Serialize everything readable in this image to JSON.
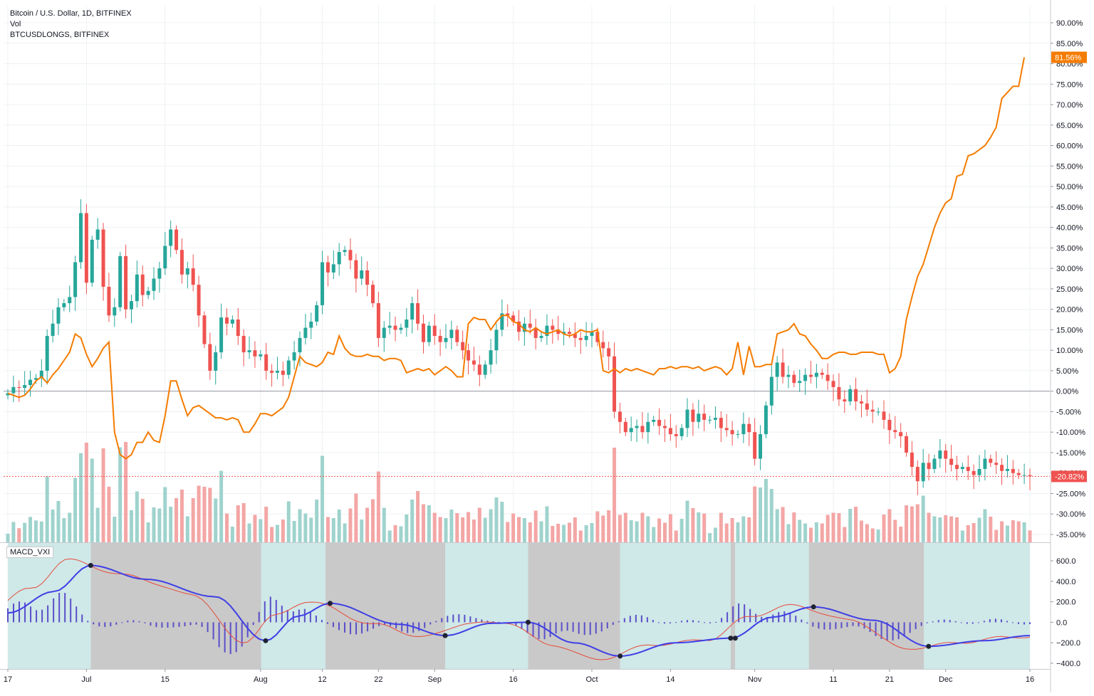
{
  "chart_data": [
    {
      "type": "candlestick",
      "legend": [
        "Bitcoin / U.S. Dollar, 1D, BITFINEX",
        "Vol",
        "BTCUSDLONGS, BITFINEX"
      ],
      "unit": "%",
      "x_tick_labels": [
        "17",
        "Jul",
        "15",
        "Aug",
        "12",
        "22",
        "Sep",
        "16",
        "Oct",
        "14",
        "Nov",
        "11",
        "21",
        "Dec",
        "16"
      ],
      "y_tick_labels": [
        "90.00%",
        "85.00%",
        "80.00%",
        "75.00%",
        "70.00%",
        "65.00%",
        "60.00%",
        "55.00%",
        "50.00%",
        "45.00%",
        "40.00%",
        "35.00%",
        "30.00%",
        "25.00%",
        "20.00%",
        "15.00%",
        "10.00%",
        "5.00%",
        "0.00%",
        "-5.00%",
        "-10.00%",
        "-15.00%",
        "-20.00%",
        "-25.00%",
        "-30.00%",
        "-35.00%"
      ],
      "ylim": [
        -37.5,
        93
      ],
      "baseline": 0,
      "colors": {
        "up": "#26a69a",
        "down": "#ef5350",
        "longs_line": "#f57c00",
        "vol_up": "#9fd3cd",
        "vol_down": "#f3a6a5"
      },
      "last_value_labels": [
        {
          "series": "BTCUSDLONGS, BITFINEX",
          "text": "81.56%",
          "value": 81.56,
          "color": "#f57c00"
        },
        {
          "series": "Bitcoin / U.S. Dollar, 1D, BITFINEX",
          "text": "-20.82%",
          "value": -20.82,
          "color": "#ef5350"
        }
      ],
      "btc_close_pct": [
        -0.5,
        1.0,
        0.8,
        1.5,
        2.8,
        3.2,
        5.0,
        13.5,
        16.5,
        20.5,
        21.5,
        23.0,
        31.5,
        43.5,
        26.5,
        37.0,
        39.5,
        25.5,
        18.5,
        20.5,
        33.0,
        20.0,
        22.0,
        28.5,
        23.5,
        24.5,
        27.5,
        30.0,
        35.5,
        39.5,
        34.5,
        28.5,
        30.0,
        26.0,
        18.5,
        11.5,
        5.0,
        9.5,
        18.0,
        16.5,
        17.5,
        13.5,
        9.5,
        10.0,
        8.5,
        9.0,
        5.0,
        4.5,
        5.0,
        4.0,
        7.5,
        9.5,
        13.0,
        15.5,
        17.0,
        21.0,
        31.5,
        29.0,
        31.0,
        34.0,
        34.5,
        32.0,
        27.5,
        29.5,
        26.0,
        21.5,
        13.0,
        15.5,
        16.0,
        15.0,
        15.5,
        17.5,
        21.5,
        16.5,
        12.0,
        16.0,
        13.5,
        12.0,
        13.0,
        15.0,
        12.0,
        10.0,
        7.5,
        6.5,
        4.0,
        6.5,
        10.0,
        15.0,
        19.0,
        18.5,
        17.0,
        14.5,
        16.5,
        15.5,
        13.0,
        13.5,
        16.0,
        15.0,
        14.0,
        14.5,
        14.0,
        13.0,
        12.5,
        13.5,
        14.5,
        12.0,
        10.5,
        8.5,
        -5.0,
        -7.5,
        -10.0,
        -9.0,
        -8.5,
        -10.0,
        -7.5,
        -7.0,
        -8.5,
        -9.0,
        -10.5,
        -11.0,
        -9.0,
        -4.5,
        -7.5,
        -5.5,
        -7.0,
        -7.0,
        -6.5,
        -9.0,
        -9.5,
        -10.5,
        -10.5,
        -8.0,
        -10.0,
        -16.5,
        -10.5,
        -3.5,
        3.5,
        7.0,
        3.5,
        4.0,
        2.0,
        2.5,
        4.0,
        3.5,
        4.5,
        4.0,
        2.5,
        1.0,
        -2.0,
        -2.5,
        0.5,
        -2.5,
        -3.0,
        -4.5,
        -5.0,
        -5.0,
        -7.0,
        -9.5,
        -10.0,
        -11.0,
        -15.0,
        -18.5,
        -22.0,
        -17.5,
        -19.0,
        -16.5,
        -14.5,
        -16.5,
        -18.0,
        -19.0,
        -18.5,
        -19.5,
        -20.5,
        -19.0,
        -16.5,
        -17.5,
        -18.0,
        -19.5,
        -19.0,
        -20.0,
        -20.5,
        -20.5,
        -20.8
      ],
      "btcusdlongs_pct": [
        -0.5,
        -1.0,
        -1.5,
        -1.0,
        0.5,
        2.5,
        3.5,
        2.0,
        4.0,
        5.5,
        7.5,
        9.5,
        14.0,
        13.0,
        9.0,
        6.0,
        8.0,
        10.5,
        12.0,
        -10.0,
        -15.5,
        -16.5,
        -15.5,
        -12.5,
        -12.5,
        -10.0,
        -12.0,
        -12.5,
        -6.0,
        2.5,
        2.5,
        -2.0,
        -6.0,
        -4.0,
        -3.5,
        -4.5,
        -5.5,
        -6.5,
        -6.5,
        -7.0,
        -6.5,
        -7.0,
        -10.0,
        -10.0,
        -8.0,
        -5.5,
        -5.5,
        -6.0,
        -5.0,
        -4.0,
        -1.5,
        3.5,
        8.5,
        7.0,
        6.5,
        6.0,
        7.0,
        9.5,
        9.0,
        13.5,
        10.5,
        9.0,
        8.5,
        8.5,
        9.0,
        8.5,
        8.5,
        7.5,
        8.0,
        8.0,
        7.5,
        4.5,
        5.0,
        5.5,
        5.0,
        5.5,
        4.0,
        5.0,
        6.0,
        5.0,
        3.5,
        3.5,
        16.5,
        18.0,
        17.5,
        17.5,
        15.0,
        17.0,
        18.5,
        18.5,
        17.0,
        16.5,
        15.0,
        14.5,
        15.5,
        14.5,
        14.0,
        14.5,
        15.0,
        14.0,
        13.5,
        14.0,
        15.0,
        14.5,
        14.5,
        15.0,
        5.0,
        4.5,
        5.5,
        4.5,
        5.5,
        5.0,
        5.5,
        5.0,
        4.5,
        4.0,
        5.5,
        5.5,
        6.0,
        5.5,
        6.0,
        6.0,
        5.5,
        6.0,
        5.0,
        5.5,
        6.0,
        5.5,
        4.0,
        5.5,
        12.0,
        4.0,
        11.0,
        6.0,
        6.0,
        6.5,
        6.5,
        14.0,
        14.5,
        15.0,
        16.5,
        14.0,
        13.5,
        11.5,
        10.0,
        8.0,
        8.0,
        9.0,
        9.5,
        9.5,
        9.0,
        9.0,
        9.5,
        9.5,
        9.5,
        9.0,
        9.0,
        4.5,
        5.5,
        8.5,
        17.5,
        23.0,
        28.0,
        31.0,
        35.5,
        40.0,
        43.5,
        46.0,
        47.0,
        52.5,
        53.0,
        57.5,
        58.0,
        59.0,
        60.0,
        62.0,
        64.5,
        71.5,
        73.0,
        74.5,
        74.5,
        81.56
      ]
    },
    {
      "type": "line",
      "title": "MACD_VXI",
      "y_tick_labels": [
        "600.0",
        "400.0",
        "200.0",
        "0.0",
        "−200.0",
        "−400.0"
      ],
      "ylim": [
        -440,
        690
      ],
      "series": [
        {
          "color": "#3f3fe6"
        },
        {
          "color": "#e74c3c"
        }
      ],
      "histogram_color": "#5a4fc9",
      "regime_colors": {
        "bull": "#cfe8e8",
        "bear": "#c9c9c9"
      },
      "regimes": [
        {
          "from_day": 0,
          "to_day": 18,
          "state": "bull"
        },
        {
          "from_day": 18,
          "to_day": 55,
          "state": "bear"
        },
        {
          "from_day": 55,
          "to_day": 69,
          "state": "bull"
        },
        {
          "from_day": 69,
          "to_day": 95,
          "state": "bear"
        },
        {
          "from_day": 95,
          "to_day": 113,
          "state": "bull"
        },
        {
          "from_day": 113,
          "to_day": 133,
          "state": "bear"
        },
        {
          "from_day": 133,
          "to_day": 157,
          "state": "bull"
        },
        {
          "from_day": 157,
          "to_day": 158,
          "state": "bear"
        },
        {
          "from_day": 158,
          "to_day": 174,
          "state": "bull"
        },
        {
          "from_day": 174,
          "to_day": 199,
          "state": "bear"
        },
        {
          "from_day": 199,
          "to_day": 222,
          "state": "bull"
        }
      ],
      "crosses": [
        {
          "day": 18,
          "value": 555
        },
        {
          "day": 56,
          "value": -180
        },
        {
          "day": 70,
          "value": 185
        },
        {
          "day": 95,
          "value": -130
        },
        {
          "day": 113,
          "value": 0
        },
        {
          "day": 133,
          "value": -330
        },
        {
          "day": 157,
          "value": -155
        },
        {
          "day": 158,
          "value": -155
        },
        {
          "day": 175,
          "value": 150
        },
        {
          "day": 200,
          "value": -235
        }
      ]
    }
  ]
}
